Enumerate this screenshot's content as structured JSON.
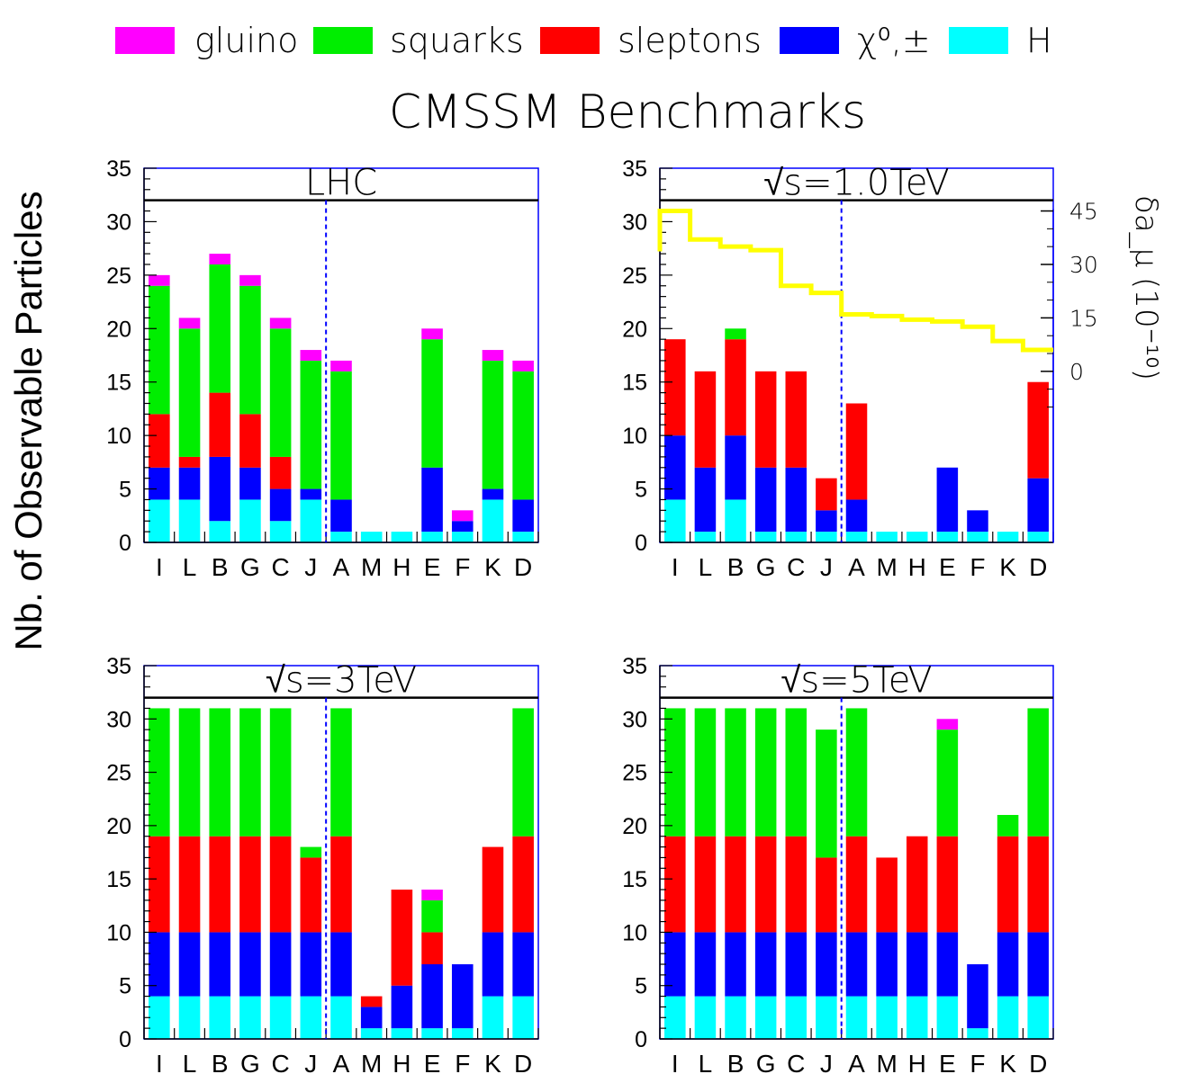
{
  "title": "CMSSM Benchmarks",
  "ylabel": "Nb. of Observable Particles",
  "legend": [
    {
      "label": "gluino",
      "color": "#ff00ff"
    },
    {
      "label": "squarks",
      "color": "#00ee00"
    },
    {
      "label": "sleptons",
      "color": "#ff0000"
    },
    {
      "label": "χ⁰,±",
      "color": "#0000ff"
    },
    {
      "label": "H",
      "color": "#00ffff"
    }
  ],
  "colors": {
    "gluino": "#ff00ff",
    "squarks": "#00ee00",
    "sleptons": "#ff0000",
    "chi": "#0000ff",
    "H": "#00ffff",
    "yellow": "#ffff00",
    "divider": "#0000ff"
  },
  "right_axis": {
    "label": "δa_μ (10⁻¹⁰)",
    "ticks": [
      "45",
      "30",
      "15",
      "0"
    ]
  },
  "chart_data": [
    {
      "type": "bar",
      "stacked": true,
      "title": "LHC",
      "categories": [
        "I",
        "L",
        "B",
        "G",
        "C",
        "J",
        "A",
        "M",
        "H",
        "E",
        "F",
        "K",
        "D"
      ],
      "ylim": [
        0,
        35
      ],
      "yticks": [
        0,
        5,
        10,
        15,
        20,
        25,
        30,
        35
      ],
      "series": [
        {
          "name": "H",
          "values": [
            4,
            4,
            2,
            4,
            2,
            4,
            1,
            1,
            1,
            1,
            1,
            4,
            1
          ]
        },
        {
          "name": "χ⁰,±",
          "values": [
            3,
            3,
            6,
            3,
            3,
            1,
            3,
            0,
            0,
            6,
            1,
            1,
            3
          ]
        },
        {
          "name": "sleptons",
          "values": [
            5,
            1,
            6,
            5,
            3,
            0,
            0,
            0,
            0,
            0,
            0,
            0,
            0
          ]
        },
        {
          "name": "squarks",
          "values": [
            12,
            12,
            12,
            12,
            12,
            12,
            12,
            0,
            0,
            12,
            0,
            12,
            12
          ]
        },
        {
          "name": "gluino",
          "values": [
            1,
            1,
            1,
            1,
            1,
            1,
            1,
            0,
            0,
            1,
            1,
            1,
            1
          ]
        }
      ]
    },
    {
      "type": "bar",
      "stacked": true,
      "title": "√s=1.0TeV",
      "categories": [
        "I",
        "L",
        "B",
        "G",
        "C",
        "J",
        "A",
        "M",
        "H",
        "E",
        "F",
        "K",
        "D"
      ],
      "ylim": [
        0,
        35
      ],
      "yticks": [
        0,
        5,
        10,
        15,
        20,
        25,
        30,
        35
      ],
      "series": [
        {
          "name": "H",
          "values": [
            4,
            1,
            4,
            1,
            1,
            1,
            1,
            1,
            1,
            1,
            1,
            1,
            1
          ]
        },
        {
          "name": "χ⁰,±",
          "values": [
            6,
            6,
            6,
            6,
            6,
            2,
            3,
            0,
            0,
            6,
            2,
            0,
            5
          ]
        },
        {
          "name": "sleptons",
          "values": [
            9,
            9,
            9,
            9,
            9,
            3,
            9,
            0,
            0,
            0,
            0,
            0,
            9
          ]
        },
        {
          "name": "squarks",
          "values": [
            0,
            0,
            1,
            0,
            0,
            0,
            0,
            0,
            0,
            0,
            0,
            0,
            0
          ]
        },
        {
          "name": "gluino",
          "values": [
            0,
            0,
            0,
            0,
            0,
            0,
            0,
            0,
            0,
            0,
            0,
            0,
            0
          ]
        }
      ],
      "overlay": {
        "type": "step",
        "axis": "right",
        "ylim": [
          -15,
          45
        ],
        "values": [
          45,
          37,
          35,
          34,
          24,
          22,
          16,
          15.5,
          14.5,
          14,
          12.5,
          8.5,
          6
        ],
        "color": "#ffff00"
      }
    },
    {
      "type": "bar",
      "stacked": true,
      "title": "√s=3TeV",
      "categories": [
        "I",
        "L",
        "B",
        "G",
        "C",
        "J",
        "A",
        "M",
        "H",
        "E",
        "F",
        "K",
        "D"
      ],
      "ylim": [
        0,
        35
      ],
      "yticks": [
        0,
        5,
        10,
        15,
        20,
        25,
        30,
        35
      ],
      "series": [
        {
          "name": "H",
          "values": [
            4,
            4,
            4,
            4,
            4,
            4,
            4,
            1,
            1,
            1,
            1,
            4,
            4
          ]
        },
        {
          "name": "χ⁰,±",
          "values": [
            6,
            6,
            6,
            6,
            6,
            6,
            6,
            2,
            4,
            6,
            6,
            6,
            6
          ]
        },
        {
          "name": "sleptons",
          "values": [
            9,
            9,
            9,
            9,
            9,
            7,
            9,
            1,
            9,
            3,
            0,
            8,
            9
          ]
        },
        {
          "name": "squarks",
          "values": [
            12,
            12,
            12,
            12,
            12,
            1,
            12,
            0,
            0,
            3,
            0,
            0,
            12
          ]
        },
        {
          "name": "gluino",
          "values": [
            0,
            0,
            0,
            0,
            0,
            0,
            0,
            0,
            0,
            1,
            0,
            0,
            0
          ]
        }
      ]
    },
    {
      "type": "bar",
      "stacked": true,
      "title": "√s=5TeV",
      "categories": [
        "I",
        "L",
        "B",
        "G",
        "C",
        "J",
        "A",
        "M",
        "H",
        "E",
        "F",
        "K",
        "D"
      ],
      "ylim": [
        0,
        35
      ],
      "yticks": [
        0,
        5,
        10,
        15,
        20,
        25,
        30,
        35
      ],
      "series": [
        {
          "name": "H",
          "values": [
            4,
            4,
            4,
            4,
            4,
            4,
            4,
            4,
            4,
            4,
            1,
            4,
            4
          ]
        },
        {
          "name": "χ⁰,±",
          "values": [
            6,
            6,
            6,
            6,
            6,
            6,
            6,
            6,
            6,
            6,
            6,
            6,
            6
          ]
        },
        {
          "name": "sleptons",
          "values": [
            9,
            9,
            9,
            9,
            9,
            7,
            9,
            7,
            9,
            9,
            0,
            9,
            9
          ]
        },
        {
          "name": "squarks",
          "values": [
            12,
            12,
            12,
            12,
            12,
            12,
            12,
            0,
            0,
            10,
            0,
            2,
            12
          ]
        },
        {
          "name": "gluino",
          "values": [
            0,
            0,
            0,
            0,
            0,
            0,
            0,
            0,
            0,
            1,
            0,
            0,
            0
          ]
        }
      ]
    }
  ]
}
